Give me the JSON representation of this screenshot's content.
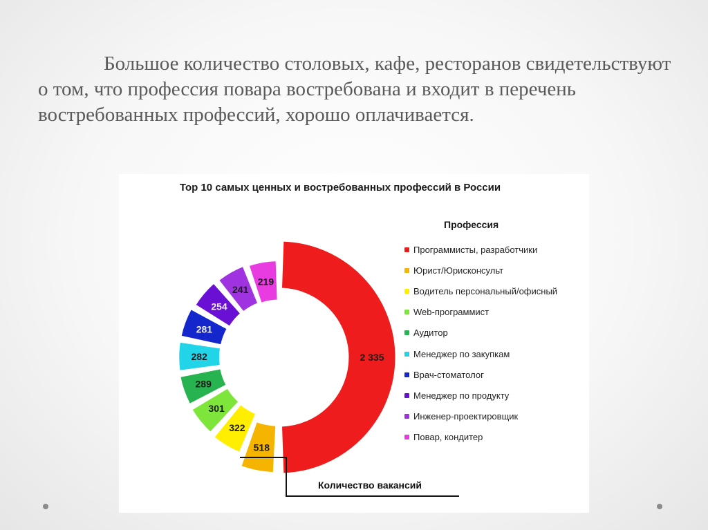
{
  "slide": {
    "text": "Большое количество столовых, кафе, ресторанов свидетельствуют о том, что профессия повара востребована и входит в перечень востребованных профессий, хорошо оплачивается."
  },
  "chart_data": {
    "type": "pie",
    "title": "Top 10 самых ценных и востребованных профессий в России",
    "legend_title": "Профессия",
    "legend_position": "right",
    "value_axis_label": "Количество вакансий",
    "categories": [
      "Программисты, разработчики",
      "Юрист/Юрисконсульт",
      "Водитель персональный/офисный",
      "Web-программист",
      "Аудитор",
      "Менеджер по закупкам",
      "Врач-стоматолог",
      "Менеджер по продукту",
      "Инженер-проектировщик",
      "Повар, кондитер"
    ],
    "values": [
      2335,
      518,
      322,
      301,
      289,
      282,
      281,
      254,
      241,
      219
    ],
    "value_labels": [
      "2 335",
      "518",
      "322",
      "301",
      "289",
      "282",
      "281",
      "254",
      "241",
      "219"
    ],
    "colors": [
      "#ee1c1c",
      "#f5b400",
      "#ffee00",
      "#7ee63a",
      "#27b350",
      "#22d4e8",
      "#1427cc",
      "#6a10d4",
      "#a033e0",
      "#e83ce0"
    ]
  },
  "nav": {
    "prev_icon": "dot-icon",
    "next_icon": "dot-icon"
  }
}
